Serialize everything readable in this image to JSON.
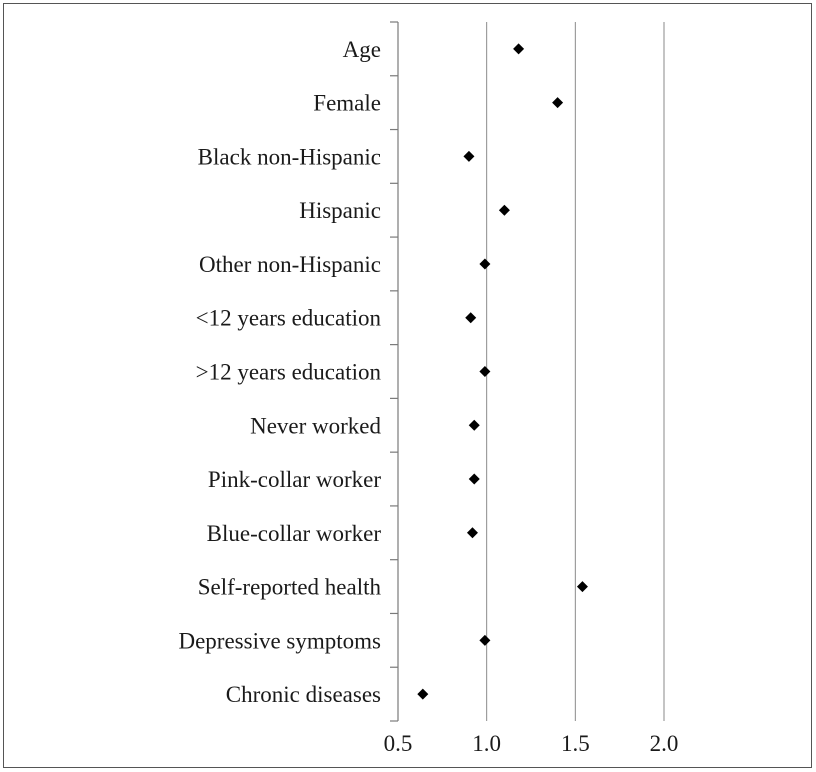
{
  "chart_data": {
    "type": "scatter",
    "title": "",
    "xlabel": "",
    "ylabel": "",
    "xlim": [
      0.5,
      2.0
    ],
    "xticks": [
      "0.5",
      "1.0",
      "1.5",
      "2.0"
    ],
    "x_gridlines": [
      1.0,
      1.5,
      2.0
    ],
    "grid": "vertical",
    "marker": "diamond",
    "marker_color": "#000000",
    "categories": [
      "Age",
      "Female",
      "Black non-Hispanic",
      "Hispanic",
      "Other non-Hispanic",
      "<12 years education",
      ">12 years education",
      "Never worked",
      "Pink-collar worker",
      "Blue-collar worker",
      "Self-reported health",
      "Depressive symptoms",
      "Chronic diseases"
    ],
    "values": [
      1.18,
      1.4,
      0.9,
      1.1,
      0.99,
      0.91,
      0.99,
      0.93,
      0.93,
      0.92,
      1.54,
      0.99,
      0.64
    ]
  }
}
